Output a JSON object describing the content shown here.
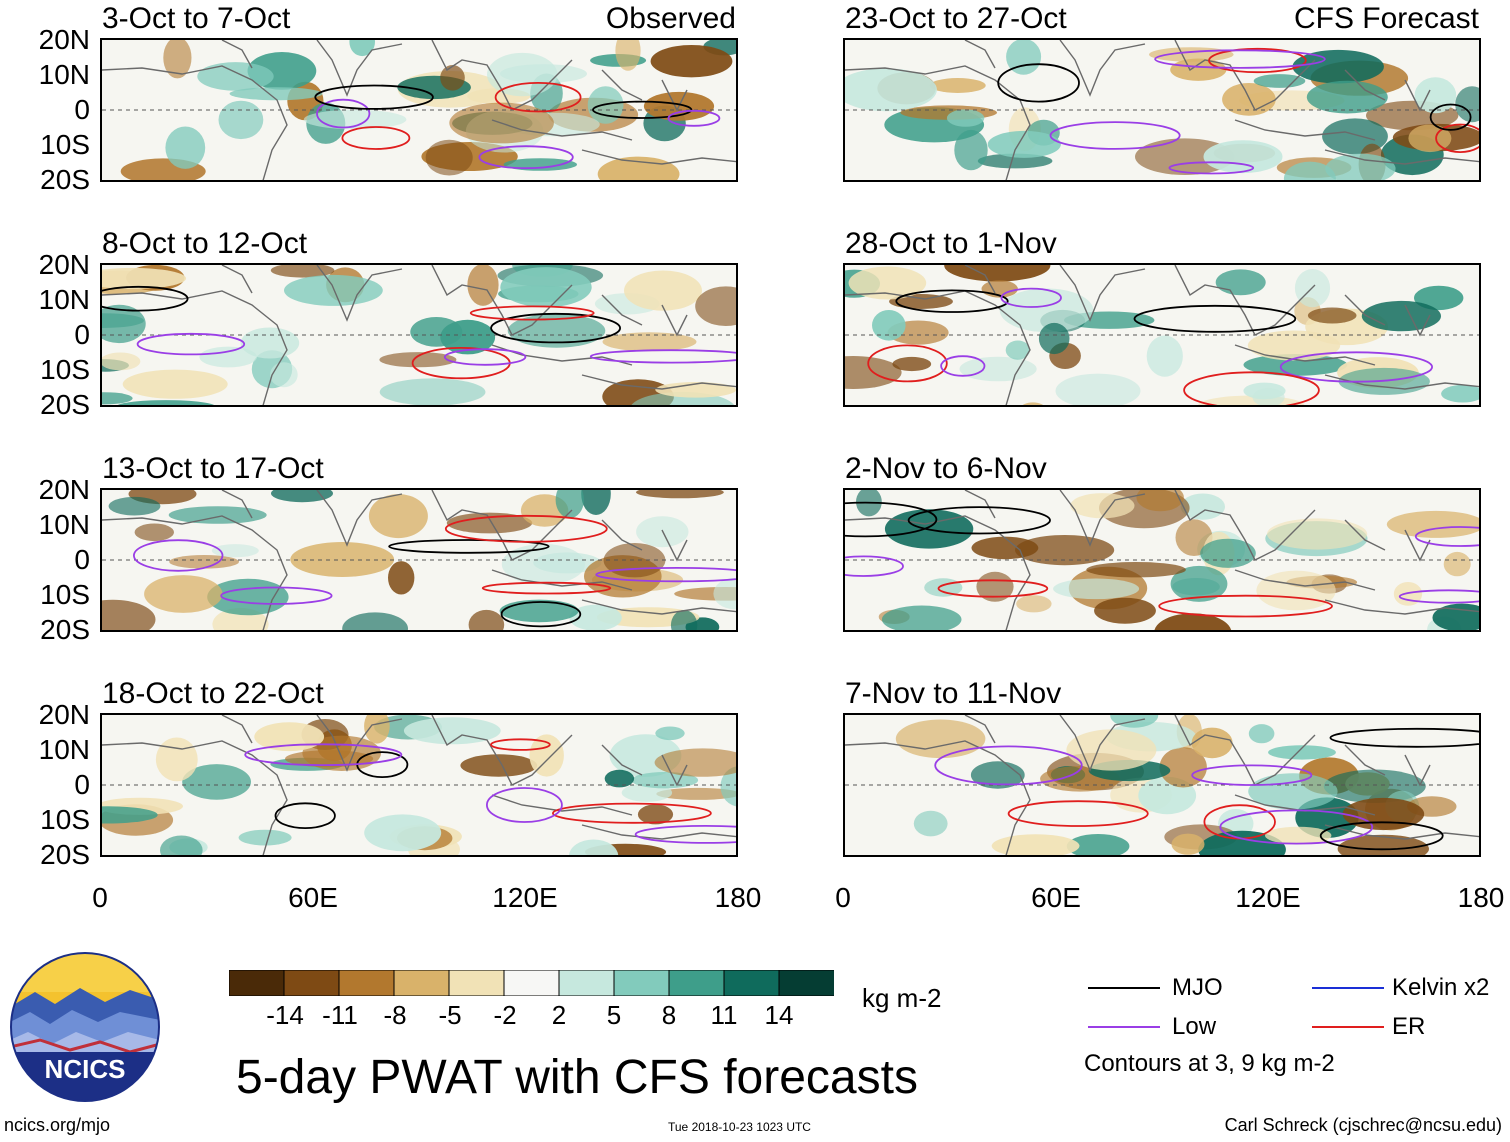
{
  "left_column_label": "Observed",
  "right_column_label": "CFS Forecast",
  "panels_left": [
    {
      "period": "3-Oct to 7-Oct"
    },
    {
      "period": "8-Oct to 12-Oct"
    },
    {
      "period": "13-Oct to 17-Oct"
    },
    {
      "period": "18-Oct to 22-Oct"
    }
  ],
  "panels_right": [
    {
      "period": "23-Oct to 27-Oct"
    },
    {
      "period": "28-Oct to 1-Nov"
    },
    {
      "period": "2-Nov to 6-Nov"
    },
    {
      "period": "7-Nov to 11-Nov"
    }
  ],
  "lat_labels": [
    "20N",
    "10N",
    "0",
    "10S",
    "20S"
  ],
  "lon_labels": [
    "0",
    "60E",
    "120E",
    "180"
  ],
  "colorbar": {
    "colors": [
      "#4a2a08",
      "#7e4a14",
      "#b2782e",
      "#d9b26a",
      "#f1e2b6",
      "#f7f7f5",
      "#c6e8de",
      "#82cbbc",
      "#3e9e8a",
      "#0f6b5c",
      "#053d33"
    ],
    "labels": [
      "-14",
      "-11",
      "-8",
      "-5",
      "-2",
      "2",
      "5",
      "8",
      "11",
      "14"
    ],
    "unit": "kg m-2"
  },
  "title": "5-day PWAT with CFS forecasts",
  "legend": {
    "items": [
      {
        "label": "MJO",
        "color": "#000000"
      },
      {
        "label": "Kelvin x2",
        "color": "#1a2fd6"
      },
      {
        "label": "Low",
        "color": "#9a3ee6"
      },
      {
        "label": "ER",
        "color": "#e01e1e"
      }
    ],
    "note": "Contours at 3, 9 kg m-2"
  },
  "logo_text": "NCICS",
  "footer": {
    "url": "ncics.org/mjo",
    "timestamp": "Tue 2018-10-23 1023 UTC",
    "author": "Carl Schreck (cjschrec@ncsu.edu)"
  }
}
